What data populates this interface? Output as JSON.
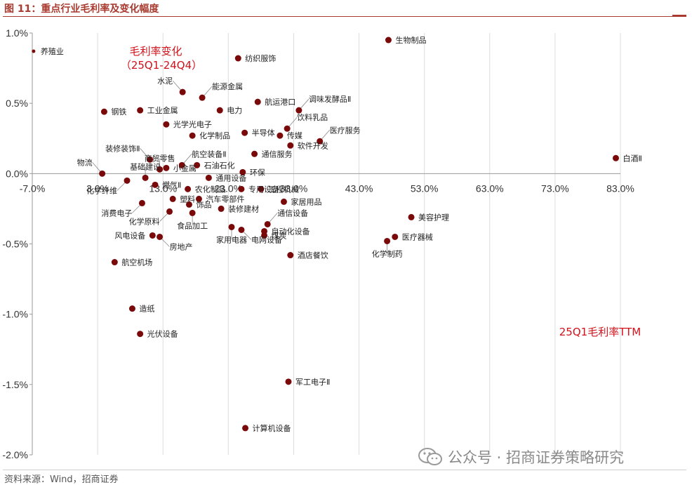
{
  "header": {
    "title": "图 11：重点行业毛利率及变化幅度"
  },
  "footer": {
    "source": "资料来源：Wind，招商证券"
  },
  "watermark": {
    "text": "公众号 · 招商证券策略研究",
    "icon": "wechat-icon"
  },
  "colors": {
    "accent": "#a83a2f",
    "point": "#7a0a0a",
    "annotation": "#d0121b"
  },
  "chart_data": {
    "type": "scatter",
    "title": "图 11：重点行业毛利率及变化幅度",
    "xlabel": "25Q1毛利率TTM",
    "ylabel": "毛利率变化（25Q1-24Q4）",
    "ylabel_lines": [
      "毛利率变化",
      "（25Q1-24Q4）"
    ],
    "xlim": [
      -7,
      83
    ],
    "ylim": [
      -2.0,
      1.0
    ],
    "xticks": [
      -7,
      3,
      13,
      23,
      33,
      43,
      53,
      63,
      73,
      83
    ],
    "xtick_labels": [
      "-7.0%",
      "3.0%",
      "13.0%",
      "23.0%",
      "33.0%",
      "43.0%",
      "53.0%",
      "63.0%",
      "73.0%",
      "83.0%"
    ],
    "yticks": [
      1.0,
      0.5,
      0.0,
      -0.5,
      -1.0,
      -1.5,
      -2.0
    ],
    "ytick_labels": [
      "1.0%",
      "0.5%",
      "0.0%",
      "-0.5%",
      "-1.0%",
      "-1.5%",
      "-2.0%"
    ],
    "grid": "vertical",
    "points": [
      {
        "label": "生物制品",
        "x": 47.5,
        "y": 0.95,
        "anchor": "right"
      },
      {
        "label": "养殖业",
        "x": -6.8,
        "y": 0.87,
        "anchor": "right"
      },
      {
        "label": "纺织服饰",
        "x": 24.5,
        "y": 0.82,
        "anchor": "right"
      },
      {
        "label": "水泥",
        "x": 16.0,
        "y": 0.58,
        "anchor": "above-left"
      },
      {
        "label": "能源金属",
        "x": 19.0,
        "y": 0.54,
        "anchor": "above-right"
      },
      {
        "label": "航运港口",
        "x": 27.5,
        "y": 0.51,
        "anchor": "right"
      },
      {
        "label": "调味发酵品Ⅱ",
        "x": 33.8,
        "y": 0.45,
        "anchor": "above-right"
      },
      {
        "label": "钢铁",
        "x": 4.0,
        "y": 0.44,
        "anchor": "right"
      },
      {
        "label": "工业金属",
        "x": 9.5,
        "y": 0.45,
        "anchor": "right"
      },
      {
        "label": "电力",
        "x": 21.7,
        "y": 0.45,
        "anchor": "right"
      },
      {
        "label": "光学光电子",
        "x": 13.5,
        "y": 0.35,
        "anchor": "right"
      },
      {
        "label": "饮料乳品",
        "x": 32.0,
        "y": 0.32,
        "anchor": "above-right"
      },
      {
        "label": "半导体",
        "x": 25.5,
        "y": 0.29,
        "anchor": "right"
      },
      {
        "label": "化学制品",
        "x": 17.5,
        "y": 0.27,
        "anchor": "right"
      },
      {
        "label": "传媒",
        "x": 30.9,
        "y": 0.27,
        "anchor": "right"
      },
      {
        "label": "医疗服务",
        "x": 37.0,
        "y": 0.23,
        "anchor": "above-right"
      },
      {
        "label": "装修装饰Ⅱ",
        "x": 11.0,
        "y": 0.1,
        "anchor": "above-left"
      },
      {
        "label": "软件开发",
        "x": 32.5,
        "y": 0.2,
        "anchor": "right"
      },
      {
        "label": "通信服务",
        "x": 27.0,
        "y": 0.14,
        "anchor": "right"
      },
      {
        "label": "白酒Ⅱ",
        "x": 82.3,
        "y": 0.11,
        "anchor": "right"
      },
      {
        "label": "商贸零售",
        "x": 12.5,
        "y": 0.03,
        "anchor": "above"
      },
      {
        "label": "航空装备Ⅱ",
        "x": 15.9,
        "y": 0.06,
        "anchor": "above-right"
      },
      {
        "label": "石油石化",
        "x": 18.2,
        "y": 0.06,
        "anchor": "right"
      },
      {
        "label": "小金属",
        "x": 13.5,
        "y": 0.04,
        "anchor": "right"
      },
      {
        "label": "物流",
        "x": 3.7,
        "y": 0.0,
        "anchor": "above-left"
      },
      {
        "label": "基础建设",
        "x": 10.3,
        "y": -0.03,
        "anchor": "above"
      },
      {
        "label": "环保",
        "x": 25.2,
        "y": 0.01,
        "anchor": "right"
      },
      {
        "label": "通用设备",
        "x": 20.0,
        "y": -0.03,
        "anchor": "right"
      },
      {
        "label": "化学纤维",
        "x": 7.5,
        "y": -0.05,
        "anchor": "below-left"
      },
      {
        "label": "燃气Ⅱ",
        "x": 11.8,
        "y": -0.08,
        "anchor": "right"
      },
      {
        "label": "农化制品",
        "x": 16.8,
        "y": -0.11,
        "anchor": "right"
      },
      {
        "label": "专用设备",
        "x": 25.0,
        "y": -0.11,
        "anchor": "right"
      },
      {
        "label": "工程机械",
        "x": 28.0,
        "y": -0.11,
        "anchor": "right"
      },
      {
        "label": "塑料",
        "x": 14.5,
        "y": -0.18,
        "anchor": "right"
      },
      {
        "label": "汽车零部件",
        "x": 18.5,
        "y": -0.18,
        "anchor": "right"
      },
      {
        "label": "家居用品",
        "x": 31.5,
        "y": -0.2,
        "anchor": "right"
      },
      {
        "label": "消费电子",
        "x": 9.8,
        "y": -0.21,
        "anchor": "below-left"
      },
      {
        "label": "饰品",
        "x": 17.0,
        "y": -0.22,
        "anchor": "right"
      },
      {
        "label": "装修建材",
        "x": 21.9,
        "y": -0.25,
        "anchor": "right"
      },
      {
        "label": "化学原料",
        "x": 14.0,
        "y": -0.27,
        "anchor": "below-left"
      },
      {
        "label": "食品加工",
        "x": 17.5,
        "y": -0.28,
        "anchor": "below"
      },
      {
        "label": "通信设备",
        "x": 29.0,
        "y": -0.36,
        "anchor": "above-right"
      },
      {
        "label": "家用电器",
        "x": 23.5,
        "y": -0.38,
        "anchor": "below"
      },
      {
        "label": "电网设备",
        "x": 25.0,
        "y": -0.4,
        "anchor": "below-right"
      },
      {
        "label": "自动化设备",
        "x": 28.5,
        "y": -0.41,
        "anchor": "right"
      },
      {
        "label": "煤炭",
        "x": 28.5,
        "y": -0.44,
        "anchor": "right"
      },
      {
        "label": "风电设备",
        "x": 11.4,
        "y": -0.44,
        "anchor": "left"
      },
      {
        "label": "房地产",
        "x": 12.5,
        "y": -0.45,
        "anchor": "below-right"
      },
      {
        "label": "美容护理",
        "x": 51.0,
        "y": -0.31,
        "anchor": "right"
      },
      {
        "label": "医疗器械",
        "x": 48.5,
        "y": -0.45,
        "anchor": "right"
      },
      {
        "label": "化学制药",
        "x": 47.3,
        "y": -0.48,
        "anchor": "below"
      },
      {
        "label": "酒店餐饮",
        "x": 32.5,
        "y": -0.58,
        "anchor": "right"
      },
      {
        "label": "航空机场",
        "x": 5.6,
        "y": -0.63,
        "anchor": "right"
      },
      {
        "label": "造纸",
        "x": 8.3,
        "y": -0.96,
        "anchor": "right"
      },
      {
        "label": "光伏设备",
        "x": 9.5,
        "y": -1.14,
        "anchor": "right"
      },
      {
        "label": "军工电子Ⅱ",
        "x": 32.2,
        "y": -1.48,
        "anchor": "right"
      },
      {
        "label": "计算机设备",
        "x": 25.6,
        "y": -1.81,
        "anchor": "right"
      }
    ]
  }
}
